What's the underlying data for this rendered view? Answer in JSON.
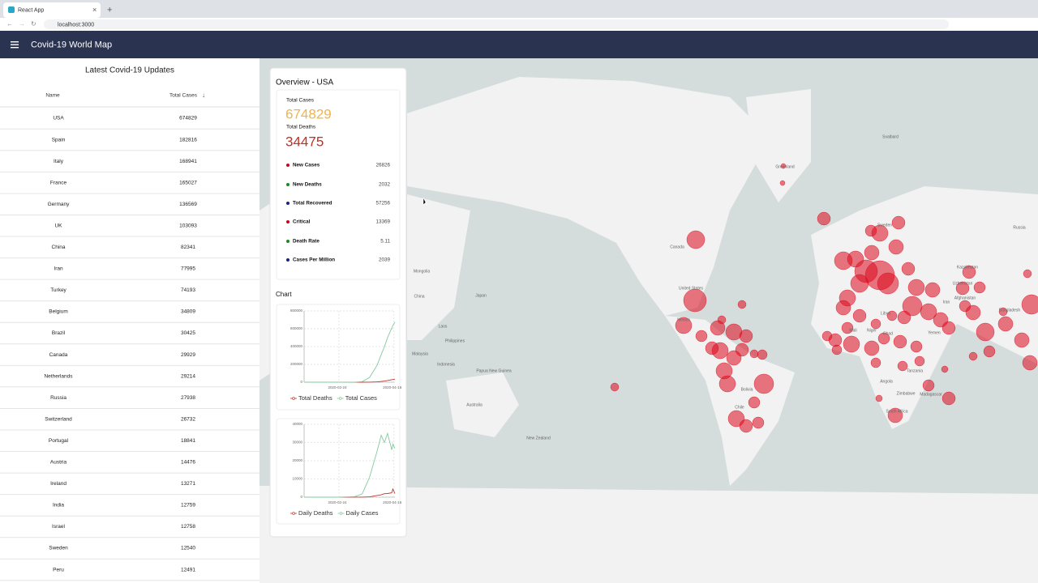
{
  "browser": {
    "tab_title": "React App",
    "url": "localhost:3000"
  },
  "app_bar": {
    "title": "Covid-19 World Map"
  },
  "table": {
    "title": "Latest Covid-19 Updates",
    "columns": [
      "Name",
      "Total Cases"
    ],
    "rows": [
      [
        "USA",
        674829
      ],
      [
        "Spain",
        182816
      ],
      [
        "Italy",
        168941
      ],
      [
        "France",
        165027
      ],
      [
        "Germany",
        136569
      ],
      [
        "UK",
        103093
      ],
      [
        "China",
        82341
      ],
      [
        "Iran",
        77995
      ],
      [
        "Turkey",
        74193
      ],
      [
        "Belgium",
        34809
      ],
      [
        "Brazil",
        30425
      ],
      [
        "Canada",
        29929
      ],
      [
        "Netherlands",
        29214
      ],
      [
        "Russia",
        27938
      ],
      [
        "Switzerland",
        26732
      ],
      [
        "Portugal",
        18841
      ],
      [
        "Austria",
        14476
      ],
      [
        "Ireland",
        13271
      ],
      [
        "India",
        12759
      ],
      [
        "Israel",
        12758
      ],
      [
        "Sweden",
        12540
      ],
      [
        "Peru",
        12491
      ]
    ]
  },
  "overview": {
    "title": "Overview - USA",
    "total_cases_label": "Total Cases",
    "total_cases": 674829,
    "total_deaths_label": "Total Deaths",
    "total_deaths": 34475,
    "stats": [
      {
        "label": "New Cases",
        "value": 26826,
        "color": "#d0021b"
      },
      {
        "label": "New Deaths",
        "value": 2032,
        "color": "#1a8a1a"
      },
      {
        "label": "Total Recovered",
        "value": 57256,
        "color": "#1a237e"
      },
      {
        "label": "Critical",
        "value": 13369,
        "color": "#d0021b"
      },
      {
        "label": "Death Rate",
        "value": 5.11,
        "color": "#1a8a1a"
      },
      {
        "label": "Cases Per Million",
        "value": 2039,
        "color": "#1a237e"
      }
    ]
  },
  "chart_section": {
    "title": "Chart"
  },
  "charts": [
    {
      "type": "line",
      "x": [
        "2020-01-22",
        "2020-02-24",
        "2020-03-10",
        "2020-03-17",
        "2020-03-24",
        "2020-03-31",
        "2020-04-04",
        "2020-04-07",
        "2020-04-10",
        "2020-04-14",
        "2020-04-15",
        "2020-04-17"
      ],
      "xlim": [
        "2020-01-22",
        "2020-04-17"
      ],
      "xticks": [
        "2020-02-24",
        "2020-04-16"
      ],
      "ylim": [
        0,
        800000
      ],
      "yticks": [
        0,
        200000,
        400000,
        600000,
        800000
      ],
      "grid": true,
      "series": [
        {
          "name": "Total Deaths",
          "color": "#c0392b",
          "values": [
            0,
            0,
            30,
            100,
            700,
            4000,
            8500,
            13000,
            18500,
            28000,
            30500,
            34475
          ]
        },
        {
          "name": "Total Cases",
          "color": "#82ca9d",
          "values": [
            1,
            51,
            1000,
            6400,
            53000,
            188000,
            310000,
            396000,
            500000,
            607000,
            636000,
            674829
          ]
        }
      ]
    },
    {
      "type": "line",
      "x": [
        "2020-01-22",
        "2020-02-24",
        "2020-03-10",
        "2020-03-17",
        "2020-03-24",
        "2020-03-31",
        "2020-04-04",
        "2020-04-07",
        "2020-04-10",
        "2020-04-14",
        "2020-04-15",
        "2020-04-17"
      ],
      "xlim": [
        "2020-01-22",
        "2020-04-17"
      ],
      "xticks": [
        "2020-02-24",
        "2020-04-16"
      ],
      "ylim": [
        0,
        40000
      ],
      "yticks": [
        0,
        10000,
        20000,
        30000,
        40000
      ],
      "grid": true,
      "series": [
        {
          "name": "Daily Deaths",
          "color": "#c0392b",
          "values": [
            0,
            0,
            10,
            30,
            200,
            900,
            1300,
            1900,
            2000,
            2400,
            4500,
            2032
          ]
        },
        {
          "name": "Daily Cases",
          "color": "#82ca9d",
          "values": [
            0,
            0,
            300,
            1800,
            11000,
            25000,
            34000,
            30000,
            35000,
            26000,
            29000,
            26826
          ]
        }
      ]
    }
  ],
  "map": {
    "labels": [
      "Greenland",
      "Svalbard",
      "Canada",
      "United States",
      "Mexico",
      "Mongolia",
      "China",
      "Japan",
      "Laos",
      "Philippines",
      "Malaysia",
      "Indonesia",
      "Papua New Guinea",
      "Australia",
      "New Zealand",
      "Bolivia",
      "Chile",
      "Sweden",
      "Russia",
      "Kazakhstan",
      "Libya",
      "Mali",
      "Niger",
      "Chad",
      "Iran",
      "Yemen",
      "Angola",
      "Tanzania",
      "Zimbabwe",
      "Madagascar",
      "South Africa",
      "Afghanistan",
      "Uzbekistan",
      "Bangladesh"
    ]
  }
}
